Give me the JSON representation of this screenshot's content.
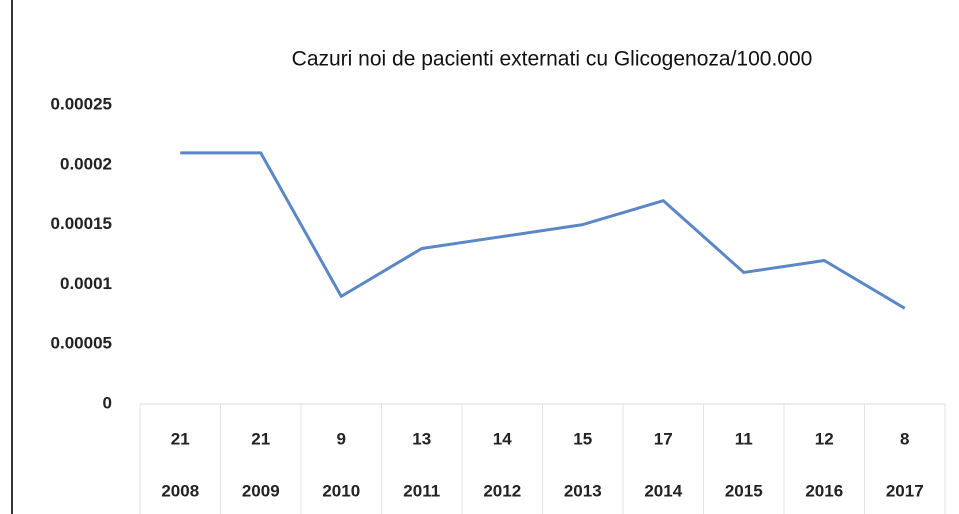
{
  "chart_data": {
    "type": "line",
    "title": "Cazuri noi de pacienti externati cu Glicogenoza/100.000",
    "categories": [
      "2008",
      "2009",
      "2010",
      "2011",
      "2012",
      "2013",
      "2014",
      "2015",
      "2016",
      "2017"
    ],
    "case_counts": [
      21,
      21,
      9,
      13,
      14,
      15,
      17,
      11,
      12,
      8
    ],
    "values": [
      0.00021,
      0.00021,
      9e-05,
      0.00013,
      0.00014,
      0.00015,
      0.00017,
      0.00011,
      0.00012,
      8e-05
    ],
    "color": "#5b87c5",
    "ylim": [
      0,
      0.00025
    ],
    "yticks": [
      0,
      5e-05,
      0.0001,
      0.00015,
      0.0002,
      0.00025
    ],
    "grid": false
  }
}
